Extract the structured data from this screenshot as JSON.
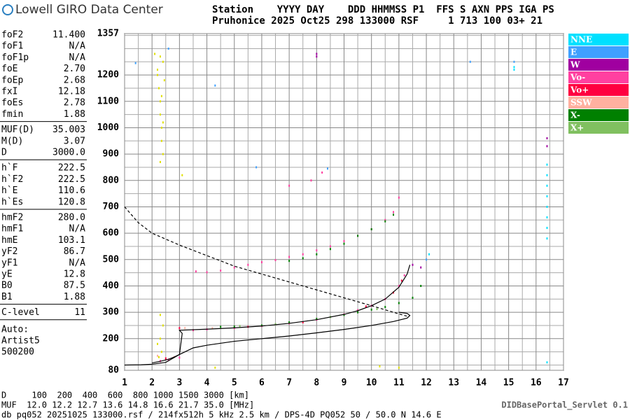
{
  "header": {
    "logo": "Lowell GIRO Data Center",
    "row1": "Station    YYYY DAY    DDD HHMMSS P1  FFS S AXN PPS IGA PS",
    "row2": "Pruhonice 2025 Oct25 298 133000 RSF     1 713 100 03+ 21"
  },
  "params": [
    [
      [
        "foF2",
        "11.400"
      ],
      [
        "foF1",
        "N/A"
      ],
      [
        "foF1p",
        "N/A"
      ],
      [
        "foE",
        "2.70"
      ],
      [
        "foEp",
        "2.68"
      ],
      [
        "fxI",
        "12.18"
      ],
      [
        "foEs",
        "2.78"
      ],
      [
        "fmin",
        "1.88"
      ]
    ],
    [
      [
        "MUF(D)",
        "35.003"
      ],
      [
        "M(D)",
        "3.07"
      ],
      [
        "D",
        "3000.0"
      ]
    ],
    [
      [
        "h`F",
        "222.5"
      ],
      [
        "h`F2",
        "222.5"
      ],
      [
        "h`E",
        "110.6"
      ],
      [
        "h`Es",
        "120.8"
      ]
    ],
    [
      [
        "hmF2",
        "280.0"
      ],
      [
        "hmF1",
        "N/A"
      ],
      [
        "hmE",
        "103.1"
      ],
      [
        "yF2",
        "86.7"
      ],
      [
        "yF1",
        "N/A"
      ],
      [
        "yE",
        "12.8"
      ],
      [
        "B0",
        "87.5"
      ],
      [
        "B1",
        "1.88"
      ]
    ],
    [
      [
        "C-level",
        "11"
      ]
    ]
  ],
  "auto": [
    "Auto:",
    "Artist5",
    "500200"
  ],
  "footer": {
    "d_row": "D     100  200  400  600  800 1000 1500 3000 [km]",
    "muf_row": "MUF  12.0 12.2 12.7 13.6 14.8 16.6 21.7 35.0 [MHz]",
    "file": "db pq052 20251025 133000.rsf / 214fx512h 5 kHz 2.5 km / DPS-4D PQ052 50 / 50.0 N 14.6 E",
    "servlet": "DIDBasePortal_Servlet 0.1"
  },
  "chart_data": {
    "type": "scatter",
    "xlim": [
      1,
      17
    ],
    "ylim": [
      80,
      1357
    ],
    "xticks": [
      1,
      2,
      3,
      4,
      5,
      6,
      7,
      8,
      9,
      10,
      11,
      12,
      13,
      14,
      15,
      16,
      17
    ],
    "yticks": [
      80,
      200,
      300,
      400,
      500,
      600,
      700,
      800,
      900,
      1000,
      1100,
      1200,
      1357
    ],
    "xgrid": [
      1.5,
      2.5,
      3.5,
      4.5,
      5.5,
      6.5,
      7.5,
      8.5,
      9.5,
      10.5,
      11.5,
      12.5,
      13.5,
      14.5,
      15.5,
      16.5
    ],
    "ygrid": [
      100,
      150,
      250,
      350,
      450,
      550,
      650,
      750,
      850,
      950,
      1050,
      1150,
      1250,
      1300,
      1350
    ],
    "series": [
      {
        "name": "NNE",
        "color": "#00e0ff",
        "x": [
          16.4,
          16.4,
          16.4,
          16.4,
          16.4,
          16.4,
          16.4,
          16.4,
          15.2,
          15.2,
          12.1,
          16.4
        ],
        "values": [
          580,
          620,
          660,
          700,
          740,
          780,
          820,
          860,
          1230,
          1220,
          520,
          110
        ]
      },
      {
        "name": "E",
        "color": "#3fa0ff",
        "x": [
          1.4,
          4.3,
          8.4,
          12.0,
          15.2,
          13.6,
          5.8,
          2.6
        ],
        "values": [
          1245,
          1160,
          845,
          500,
          1250,
          1250,
          850,
          1300
        ]
      },
      {
        "name": "W",
        "color": "#a000a0",
        "x": [
          8,
          8,
          16.4,
          16.4,
          11.5,
          11.8
        ],
        "values": [
          1280,
          1270,
          960,
          930,
          480,
          470
        ]
      },
      {
        "name": "Vo-",
        "color": "#ff40a0",
        "x": [
          2.3,
          2.6,
          3.0,
          3.5,
          4,
          5,
          6,
          7,
          8,
          9,
          9.5,
          10,
          10.5,
          11,
          11.2,
          3.6,
          4,
          4.5,
          5,
          5.5,
          6,
          6.5,
          7,
          7.5,
          8,
          8.5,
          9,
          9.5,
          10,
          10.5,
          10.8,
          11,
          7,
          7.8,
          8.2
        ],
        "values": [
          115,
          120,
          128,
          232,
          235,
          240,
          248,
          258,
          272,
          292,
          308,
          325,
          350,
          400,
          440,
          455,
          452,
          458,
          470,
          480,
          490,
          498,
          510,
          520,
          535,
          550,
          570,
          590,
          615,
          650,
          680,
          735,
          780,
          800,
          830
        ]
      },
      {
        "name": "Vo+",
        "color": "#ff0040",
        "x": [
          2.5,
          3,
          5.5,
          7.5,
          9.8,
          10.8,
          11.1
        ],
        "values": [
          125,
          240,
          245,
          262,
          322,
          375,
          420
        ]
      },
      {
        "name": "SSW",
        "color": "#ffb0a0",
        "x": [
          2.2,
          2.8,
          3.2,
          4.2
        ],
        "values": [
          135,
          130,
          240,
          240
        ]
      },
      {
        "name": "X-",
        "color": "#008000",
        "x": [
          4.5,
          5,
          6,
          7,
          8,
          9,
          9.5,
          10,
          10.5,
          11,
          11.5,
          11.8,
          7,
          7.5,
          8,
          8.5,
          9,
          9.5,
          10,
          10.5,
          10.8
        ],
        "values": [
          245,
          246,
          250,
          262,
          275,
          290,
          300,
          310,
          320,
          335,
          355,
          400,
          495,
          505,
          520,
          540,
          560,
          590,
          615,
          645,
          670
        ]
      },
      {
        "name": "X+",
        "color": "#80c060",
        "x": [
          5.2,
          6.5,
          8.5,
          10.2
        ],
        "values": [
          248,
          255,
          282,
          312
        ]
      },
      {
        "color": "#e0e000",
        "x": [
          2.1,
          2.2,
          2.25,
          2.3,
          2.3,
          2.35,
          2.35,
          2.4,
          2.4,
          2.45,
          2.2,
          2.3,
          2.35,
          2.4,
          2.3,
          2.25,
          2.35,
          2.3,
          2.4,
          2.2,
          2.3,
          10.3,
          11,
          4.3,
          3.1
        ],
        "values": [
          1280,
          1200,
          1150,
          1100,
          1050,
          1000,
          950,
          900,
          1250,
          1180,
          1220,
          1270,
          1120,
          1020,
          870,
          130,
          150,
          200,
          250,
          180,
          290,
          95,
          90,
          90,
          820
        ]
      },
      {
        "color": "#000000",
        "line": "solid",
        "x": [
          1.0,
          1.6,
          2.0,
          2.5,
          3,
          3.5,
          4,
          5,
          6,
          7,
          8,
          9,
          10,
          10.8,
          11.3,
          11.4,
          11.3,
          11.0
        ],
        "values": [
          100,
          101,
          103,
          110,
          140,
          165,
          175,
          190,
          200,
          210,
          222,
          235,
          250,
          265,
          278,
          288,
          296,
          300
        ]
      },
      {
        "color": "#000000",
        "line": "solid",
        "x": [
          2.0,
          2.3,
          2.6,
          2.8,
          3,
          3.1,
          3.0,
          4,
          5,
          6,
          7,
          8,
          9,
          9.5,
          10,
          10.5,
          11,
          11.3,
          11.4
        ],
        "values": [
          108,
          114,
          122,
          130,
          140,
          220,
          232,
          236,
          241,
          248,
          258,
          272,
          292,
          306,
          325,
          350,
          395,
          445,
          480
        ]
      },
      {
        "color": "#000000",
        "line": "dashed",
        "x": [
          1.0,
          1.5,
          2,
          3,
          4,
          5,
          6,
          7,
          8,
          9,
          10,
          10.8,
          11.3
        ],
        "values": [
          700,
          640,
          600,
          555,
          515,
          475,
          445,
          415,
          385,
          355,
          325,
          300,
          285
        ]
      }
    ]
  }
}
